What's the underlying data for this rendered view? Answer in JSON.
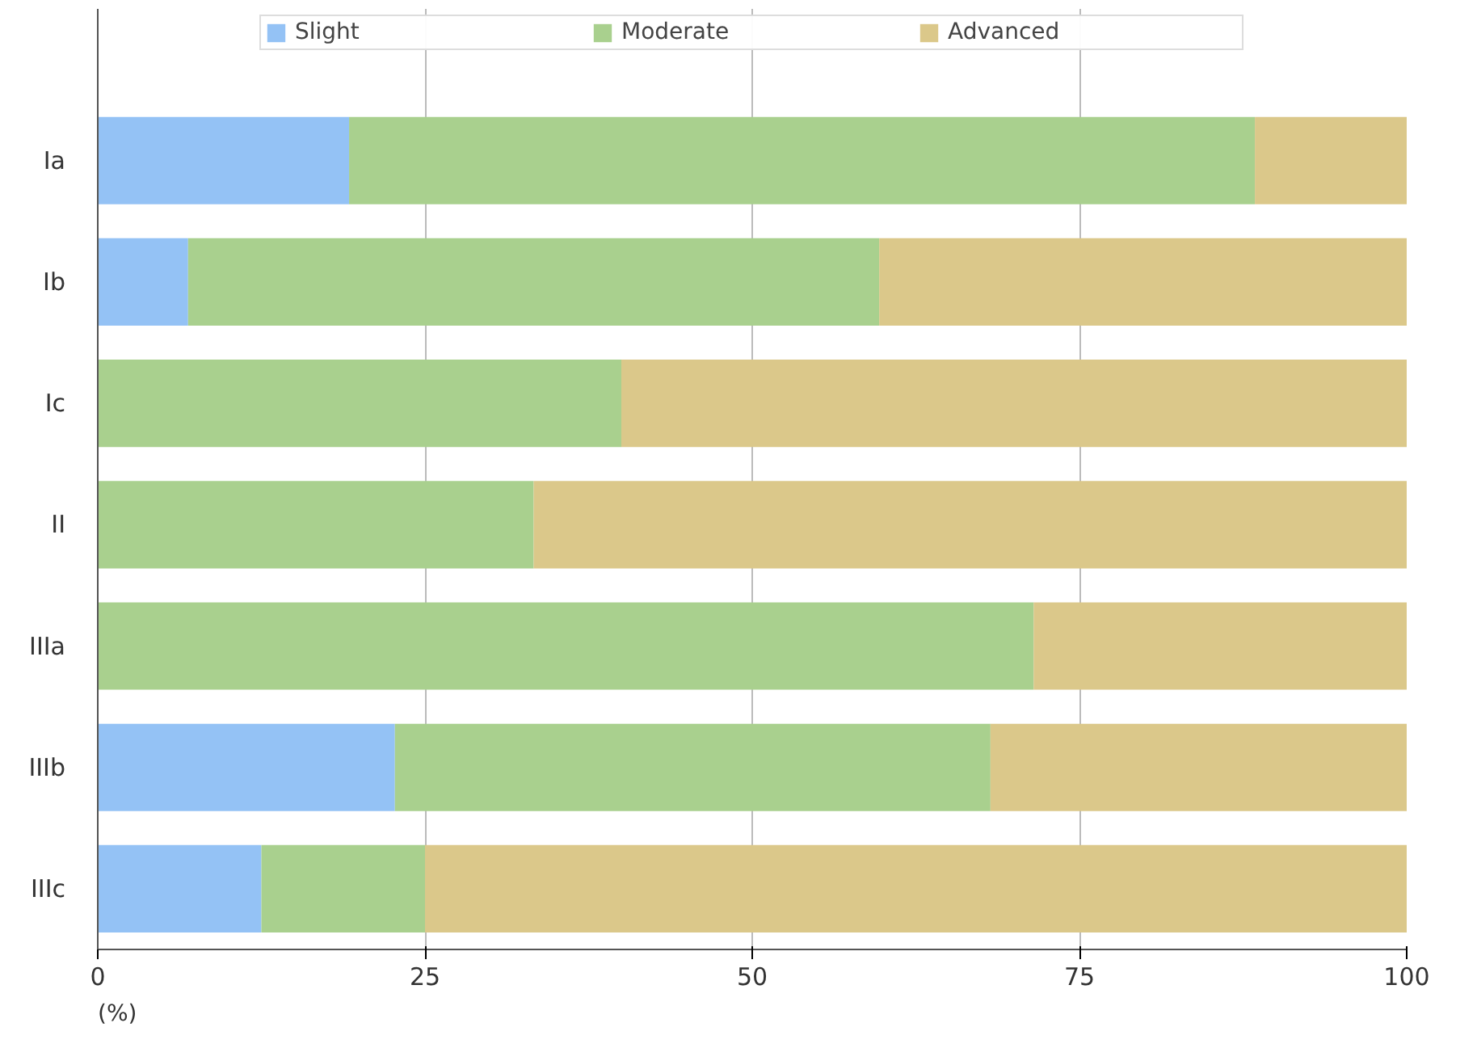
{
  "chart_data": {
    "type": "bar",
    "orientation": "horizontal",
    "stacked": true,
    "categories": [
      "Ia",
      "Ib",
      "Ic",
      "II",
      "IIIa",
      "IIIb",
      "IIIc"
    ],
    "series": [
      {
        "name": "Slight",
        "color": "#94c2f5",
        "values": [
          19.2,
          6.9,
          0,
          0,
          0,
          22.7,
          12.5
        ]
      },
      {
        "name": "Moderate",
        "color": "#a9d08e",
        "values": [
          69.2,
          52.8,
          40.0,
          33.3,
          71.5,
          45.5,
          12.5
        ]
      },
      {
        "name": "Advanced",
        "color": "#dbc88a",
        "values": [
          11.6,
          40.3,
          60.0,
          66.7,
          28.5,
          31.8,
          75.0
        ]
      }
    ],
    "xlabel": "(%)",
    "xlim": [
      0,
      100
    ],
    "xticks": [
      0,
      25,
      50,
      75,
      100
    ],
    "grid": "x",
    "legend": "top"
  }
}
